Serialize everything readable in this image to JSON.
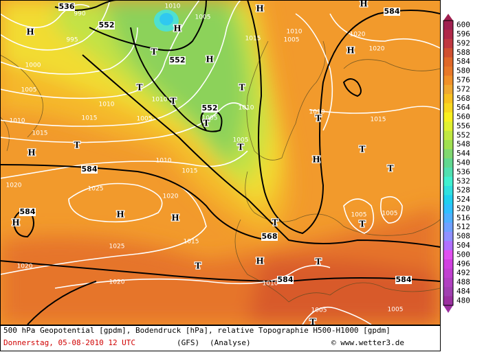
{
  "legend": {
    "levels": [
      600,
      596,
      592,
      588,
      584,
      580,
      576,
      572,
      568,
      564,
      560,
      556,
      552,
      548,
      544,
      540,
      536,
      532,
      528,
      524,
      520,
      516,
      512,
      508,
      504,
      500,
      496,
      492,
      488,
      484,
      480
    ],
    "colors": [
      "#a02050",
      "#b02848",
      "#c03840",
      "#d05030",
      "#e06828",
      "#e87828",
      "#f09028",
      "#f0a830",
      "#f8c020",
      "#f8d820",
      "#f8f020",
      "#e0f030",
      "#c0e840",
      "#a0e050",
      "#80d870",
      "#60d890",
      "#50e0b0",
      "#40f0d0",
      "#30e0e0",
      "#20d0f0",
      "#30c0ff",
      "#50b0ff",
      "#70a0ff",
      "#9090ff",
      "#b070ff",
      "#e050f0",
      "#d040e0",
      "#c040d0",
      "#b040c0",
      "#a040b0",
      "#9b30a0"
    ]
  },
  "map_labels": {
    "geopotential": [
      536,
      552,
      552,
      552,
      584,
      584,
      584,
      568,
      584,
      584
    ],
    "pressure": [
      990,
      995,
      1000,
      1005,
      1010,
      1010,
      1015,
      1015,
      1010,
      1005,
      1005,
      1010,
      1015,
      1010,
      1005,
      1020,
      1020,
      1010,
      1005,
      1010,
      1015,
      1005,
      1010,
      1015,
      1020,
      1025,
      1020,
      1025,
      1015,
      1020,
      1020,
      1010,
      1005,
      1005,
      1005,
      1005
    ],
    "highs": [
      "H",
      "H",
      "H",
      "H",
      "H",
      "H",
      "H",
      "H",
      "H",
      "H",
      "H",
      "H"
    ],
    "lows": [
      "T",
      "T",
      "T",
      "T",
      "T",
      "T",
      "T",
      "T",
      "T",
      "T",
      "T",
      "T",
      "T",
      "T",
      "T"
    ]
  },
  "footer": {
    "description": "500 hPa Geopotential [gpdm], Bodendruck [hPa], relative Topographie H500-H1000 [gpdm]",
    "date": "Donnerstag, 05-08-2010  12 UTC",
    "model": "(GFS)",
    "run": "(Analyse)",
    "credit": "© www.wetter3.de"
  }
}
